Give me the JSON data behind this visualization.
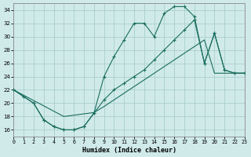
{
  "xlabel": "Humidex (Indice chaleur)",
  "bg_color": "#d0eaea",
  "grid_color": "#aacece",
  "line_color": "#1a6e5e",
  "xlim": [
    0,
    23
  ],
  "ylim": [
    15,
    35
  ],
  "xticks": [
    0,
    1,
    2,
    3,
    4,
    5,
    6,
    7,
    8,
    9,
    10,
    11,
    12,
    13,
    14,
    15,
    16,
    17,
    18,
    19,
    20,
    21,
    22,
    23
  ],
  "yticks": [
    16,
    18,
    20,
    22,
    24,
    26,
    28,
    30,
    32,
    34
  ],
  "line1_x": [
    0,
    1,
    2,
    3,
    4,
    5,
    6,
    7,
    8,
    9,
    10,
    11,
    12,
    13,
    14,
    15,
    16,
    17,
    18,
    19,
    20,
    21,
    22,
    23
  ],
  "line1_y": [
    22.0,
    21.0,
    20.0,
    17.5,
    16.5,
    16.0,
    16.0,
    16.5,
    18.5,
    24.0,
    27.0,
    29.5,
    32.0,
    32.0,
    30.0,
    33.5,
    34.5,
    34.5,
    33.0,
    26.0,
    30.5,
    25.0,
    24.5,
    24.5
  ],
  "line2_x": [
    0,
    1,
    2,
    3,
    4,
    5,
    6,
    7,
    8,
    9,
    10,
    11,
    12,
    13,
    14,
    15,
    16,
    17,
    18,
    19,
    20,
    21,
    22,
    23
  ],
  "line2_y": [
    22.0,
    21.2,
    20.4,
    19.6,
    18.8,
    18.0,
    18.2,
    18.4,
    18.6,
    19.5,
    20.5,
    21.5,
    22.5,
    23.5,
    24.5,
    25.5,
    26.5,
    27.5,
    28.5,
    29.5,
    24.5,
    24.5,
    24.5,
    24.5
  ],
  "line3_x": [
    0,
    1,
    2,
    3,
    4,
    5,
    6,
    7,
    8,
    9,
    10,
    11,
    12,
    13,
    14,
    15,
    16,
    17,
    18,
    19,
    20,
    21,
    22,
    23
  ],
  "line3_y": [
    22.0,
    21.0,
    20.0,
    17.5,
    16.5,
    16.0,
    16.0,
    16.5,
    18.5,
    20.5,
    22.0,
    23.0,
    24.0,
    25.0,
    26.5,
    28.0,
    29.5,
    31.0,
    32.5,
    26.0,
    30.5,
    25.0,
    24.5,
    24.5
  ]
}
